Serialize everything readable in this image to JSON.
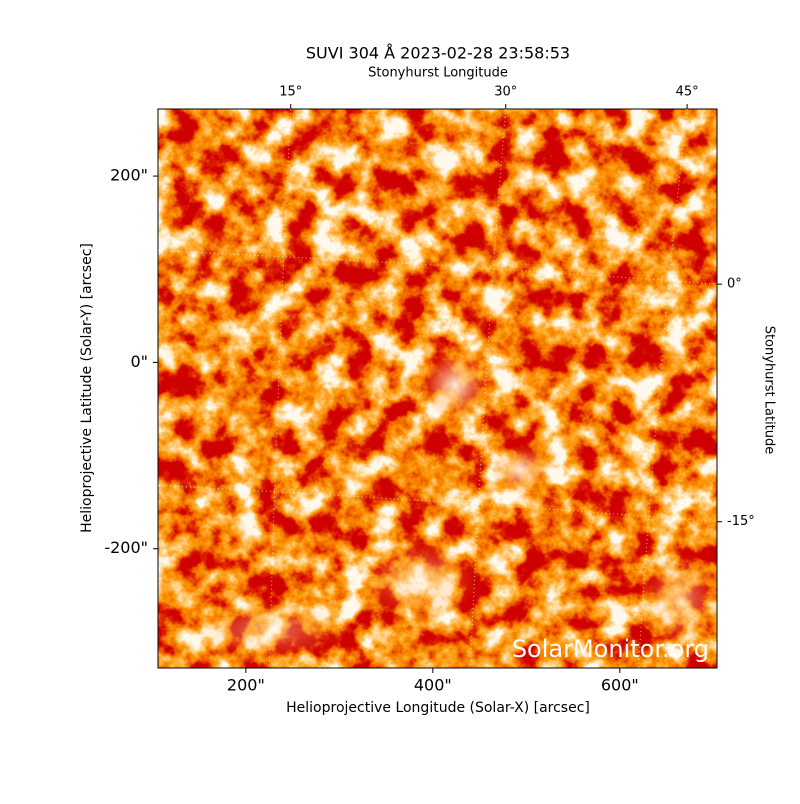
{
  "chart_data": {
    "type": "image",
    "title": "SUVI 304 Å 2023-02-28 23:58:53",
    "xlabel": "Helioprojective Longitude (Solar-X) [arcsec]",
    "ylabel": "Helioprojective Latitude (Solar-Y) [arcsec]",
    "xlim": [
      106,
      704
    ],
    "ylim": [
      -328,
      272
    ],
    "xticks": [
      {
        "value": 200,
        "label": "200\""
      },
      {
        "value": 400,
        "label": "400\""
      },
      {
        "value": 600,
        "label": "600\""
      }
    ],
    "yticks": [
      {
        "value": -200,
        "label": "-200\""
      },
      {
        "value": 0,
        "label": "0\""
      },
      {
        "value": 200,
        "label": "200\""
      }
    ],
    "top_axis_label": "Stonyhurst Longitude",
    "right_axis_label": "Stonyhurst Latitude",
    "lon_grid": [
      {
        "value": 15,
        "label": "15°",
        "top_x": 248,
        "bottom_x": 225
      },
      {
        "value": 30,
        "label": "30°",
        "top_x": 478,
        "bottom_x": 440
      },
      {
        "value": 45,
        "label": "45°",
        "top_x": 672,
        "bottom_x": 620
      }
    ],
    "lat_grid": [
      {
        "value": 0,
        "label": "0°",
        "left_y": 120,
        "right_y": 84
      },
      {
        "value": -15,
        "label": "-15°",
        "left_y": -132,
        "right_y": -171
      }
    ],
    "watermark": "SolarMonitor.org"
  }
}
